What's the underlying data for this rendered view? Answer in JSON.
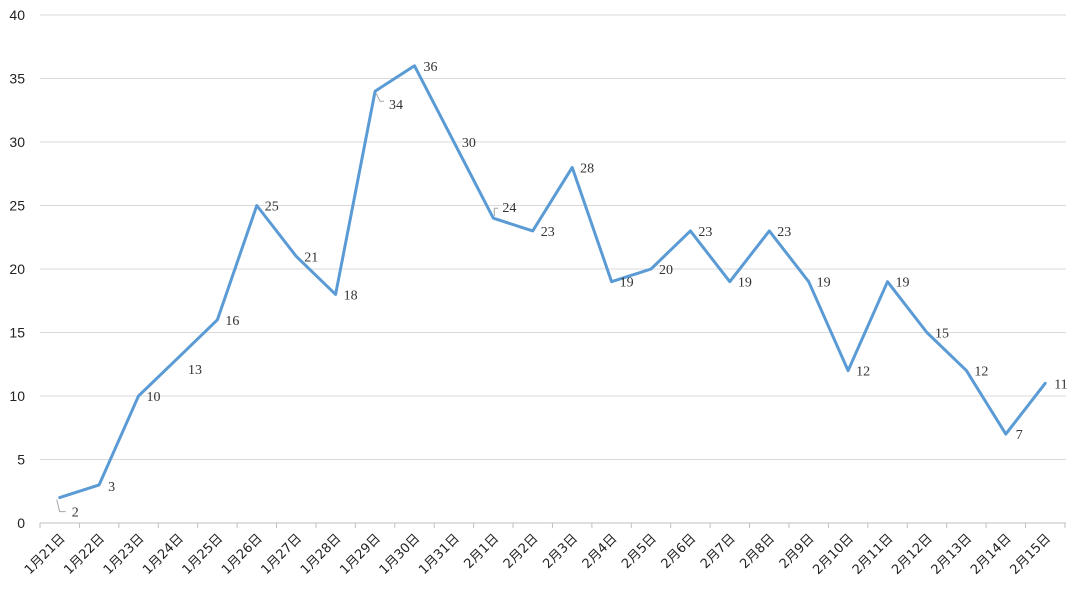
{
  "chart_data": {
    "type": "line",
    "title": "",
    "xlabel": "",
    "ylabel": "",
    "ylim": [
      0,
      40
    ],
    "y_ticks": [
      0,
      5,
      10,
      15,
      20,
      25,
      30,
      35,
      40
    ],
    "grid": true,
    "legend": "none",
    "categories": [
      "1月21日",
      "1月22日",
      "1月23日",
      "1月24日",
      "1月25日",
      "1月26日",
      "1月27日",
      "1月28日",
      "1月29日",
      "1月30日",
      "1月31日",
      "2月1日",
      "2月2日",
      "2月3日",
      "2月4日",
      "2月5日",
      "2月6日",
      "2月7日",
      "2月8日",
      "2月9日",
      "2月10日",
      "2月11日",
      "2月12日",
      "2月13日",
      "2月14日",
      "2月15日"
    ],
    "series": [
      {
        "values": [
          2,
          3,
          10,
          13,
          16,
          25,
          21,
          18,
          34,
          36,
          30,
          24,
          23,
          28,
          19,
          20,
          23,
          19,
          23,
          19,
          12,
          19,
          15,
          12,
          7,
          11
        ]
      }
    ],
    "line_color": "#5b9bd5",
    "data_labels": [
      "2",
      "3",
      "10",
      "13",
      "16",
      "25",
      "21",
      "18",
      "34",
      "36",
      "30",
      "24",
      "23",
      "28",
      "19",
      "20",
      "23",
      "19",
      "23",
      "19",
      "12",
      "19",
      "15",
      "12",
      "7",
      "11"
    ]
  }
}
